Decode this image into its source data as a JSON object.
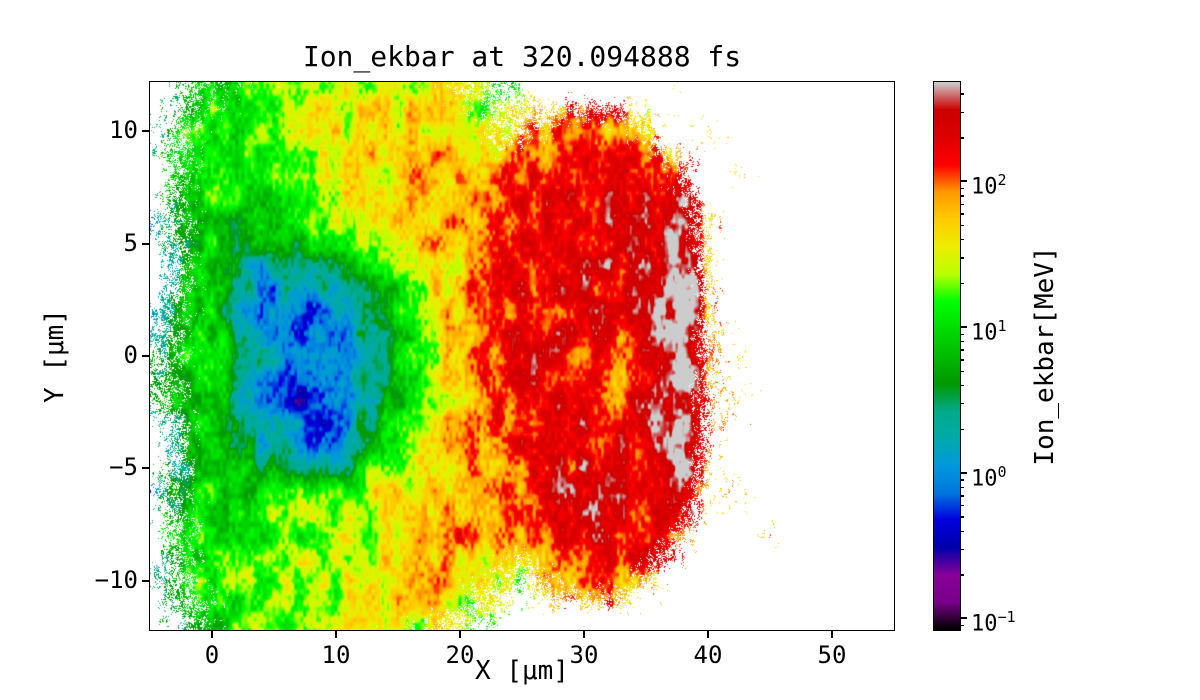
{
  "figure": {
    "title": "Ion_ekbar at 320.094888 fs",
    "xlabel": "X [μm]",
    "ylabel": "Y [μm]",
    "background": "#ffffff"
  },
  "axes": {
    "xlim": [
      -5,
      55
    ],
    "ylim": [
      -12.2,
      12.2
    ],
    "xticks": [
      0,
      10,
      20,
      30,
      40,
      50
    ],
    "yticks": [
      -10,
      -5,
      0,
      5,
      10
    ]
  },
  "colorbar": {
    "label": "Ion_ekbar[MeV]",
    "scale": "log",
    "tick_exponents": [
      2,
      1,
      0,
      -1
    ],
    "vmin_exp": -1.08,
    "vmax_exp": 2.68,
    "colormap": "nipy_spectral",
    "stops": [
      {
        "t": 0.0,
        "color": "#000000"
      },
      {
        "t": 0.05,
        "color": "#770088"
      },
      {
        "t": 0.1,
        "color": "#880099"
      },
      {
        "t": 0.15,
        "color": "#0000AA"
      },
      {
        "t": 0.2,
        "color": "#0000DD"
      },
      {
        "t": 0.25,
        "color": "#0077DD"
      },
      {
        "t": 0.3,
        "color": "#0099DD"
      },
      {
        "t": 0.35,
        "color": "#00AAAA"
      },
      {
        "t": 0.4,
        "color": "#00AA88"
      },
      {
        "t": 0.45,
        "color": "#009900"
      },
      {
        "t": 0.5,
        "color": "#00BB00"
      },
      {
        "t": 0.55,
        "color": "#00DD00"
      },
      {
        "t": 0.6,
        "color": "#00FF00"
      },
      {
        "t": 0.65,
        "color": "#BBFF00"
      },
      {
        "t": 0.7,
        "color": "#EEEE00"
      },
      {
        "t": 0.75,
        "color": "#FFCC00"
      },
      {
        "t": 0.8,
        "color": "#FF9900"
      },
      {
        "t": 0.85,
        "color": "#FF0000"
      },
      {
        "t": 0.9,
        "color": "#DD0000"
      },
      {
        "t": 0.95,
        "color": "#CC0000"
      },
      {
        "t": 1.0,
        "color": "#CCCCCC"
      }
    ]
  },
  "chart_data": {
    "type": "heatmap",
    "title": "Ion_ekbar at 320.094888 fs",
    "xlabel": "X [μm]",
    "ylabel": "Y [μm]",
    "value_label": "Ion_ekbar[MeV]",
    "value_scale": "log",
    "value_units": "MeV",
    "x_range": [
      -5,
      55
    ],
    "y_range": [
      -12.2,
      12.2
    ],
    "grid_x": [
      -5,
      -2.5,
      0,
      2.5,
      5,
      7.5,
      10,
      12.5,
      15,
      17.5,
      20,
      22.5,
      25,
      27.5,
      30,
      32.5,
      35,
      37.5,
      40,
      42.5,
      45,
      47.5,
      50,
      52.5,
      55
    ],
    "grid_y": [
      12,
      10,
      8,
      6,
      4,
      2,
      0,
      -2,
      -4,
      -6,
      -8,
      -10,
      -12
    ],
    "values_mev": [
      [
        null,
        5,
        12,
        15,
        18,
        22,
        28,
        30,
        32,
        35,
        25,
        12,
        15,
        null,
        null,
        null,
        null,
        40,
        null,
        null,
        null,
        null,
        null,
        null,
        null
      ],
      [
        2,
        8,
        12,
        15,
        18,
        25,
        32,
        38,
        45,
        50,
        40,
        25,
        60,
        90,
        120,
        90,
        40,
        null,
        40,
        null,
        null,
        null,
        null,
        null,
        null
      ],
      [
        null,
        10,
        15,
        12,
        15,
        20,
        30,
        40,
        50,
        60,
        55,
        70,
        110,
        170,
        200,
        200,
        170,
        80,
        null,
        50,
        null,
        null,
        null,
        null,
        null
      ],
      [
        1,
        5,
        10,
        8,
        10,
        15,
        20,
        30,
        40,
        55,
        65,
        85,
        150,
        190,
        200,
        200,
        210,
        420,
        60,
        null,
        null,
        null,
        null,
        null,
        null
      ],
      [
        null,
        3,
        8,
        2,
        1.5,
        3,
        5,
        10,
        25,
        40,
        60,
        95,
        170,
        200,
        190,
        200,
        210,
        600,
        80,
        null,
        null,
        null,
        null,
        null,
        null
      ],
      [
        2,
        6,
        10,
        1.5,
        0.8,
        0.5,
        1.2,
        2.5,
        10,
        35,
        60,
        100,
        180,
        200,
        180,
        200,
        210,
        600,
        90,
        null,
        null,
        null,
        null,
        null,
        null
      ],
      [
        3,
        8,
        12,
        5,
        1.0,
        0.6,
        0.8,
        1.5,
        6,
        30,
        55,
        90,
        180,
        200,
        120,
        90,
        210,
        600,
        100,
        60,
        null,
        null,
        null,
        null,
        null
      ],
      [
        2,
        6,
        10,
        2,
        0.7,
        0.4,
        1.0,
        2.5,
        8,
        30,
        55,
        90,
        170,
        200,
        150,
        110,
        210,
        600,
        90,
        60,
        null,
        null,
        null,
        null,
        null
      ],
      [
        null,
        4,
        9,
        3,
        1.5,
        1.0,
        0.6,
        3,
        20,
        40,
        60,
        85,
        160,
        190,
        200,
        200,
        210,
        500,
        80,
        null,
        null,
        null,
        null,
        null,
        null
      ],
      [
        1,
        5,
        10,
        8,
        12,
        15,
        18,
        25,
        35,
        50,
        70,
        60,
        120,
        180,
        200,
        200,
        210,
        420,
        60,
        40,
        null,
        null,
        null,
        null,
        null
      ],
      [
        null,
        8,
        12,
        14,
        16,
        20,
        25,
        30,
        40,
        60,
        80,
        50,
        80,
        160,
        200,
        210,
        190,
        100,
        null,
        null,
        50,
        null,
        null,
        null,
        null
      ],
      [
        2,
        6,
        14,
        16,
        18,
        22,
        28,
        35,
        45,
        55,
        40,
        30,
        15,
        60,
        90,
        110,
        50,
        null,
        null,
        null,
        null,
        null,
        null,
        null,
        null
      ],
      [
        null,
        3,
        10,
        14,
        16,
        20,
        25,
        30,
        35,
        30,
        20,
        10,
        null,
        null,
        null,
        null,
        null,
        null,
        null,
        null,
        null,
        null,
        null,
        null,
        null
      ]
    ],
    "coverage": [
      [
        0,
        0.3,
        0.6,
        0.7,
        0.8,
        0.8,
        0.85,
        0.85,
        0.8,
        0.8,
        0.6,
        0.4,
        0.25,
        0,
        0,
        0,
        0,
        0.2,
        0,
        0,
        0,
        0,
        0,
        0,
        0
      ],
      [
        0.25,
        0.45,
        0.8,
        0.9,
        0.95,
        1,
        1,
        1,
        1,
        1,
        0.9,
        0.6,
        0.5,
        0.7,
        0.9,
        0.8,
        0.5,
        0,
        0.2,
        0,
        0,
        0,
        0,
        0,
        0
      ],
      [
        0,
        0.5,
        0.85,
        0.95,
        1,
        1,
        1,
        1,
        1,
        1,
        1,
        0.9,
        0.9,
        1,
        1,
        1,
        1,
        0.6,
        0,
        0.2,
        0,
        0,
        0,
        0,
        0
      ],
      [
        0.3,
        0.55,
        0.9,
        1,
        1,
        1,
        1,
        1,
        1,
        1,
        1,
        1,
        1,
        1,
        1,
        1,
        1,
        0.9,
        0.3,
        0,
        0,
        0,
        0,
        0,
        0
      ],
      [
        0,
        0.5,
        0.9,
        1,
        1,
        1,
        1,
        1,
        1,
        1,
        1,
        1,
        1,
        1,
        1,
        1,
        1,
        1,
        0.3,
        0,
        0,
        0,
        0,
        0,
        0
      ],
      [
        0.3,
        0.55,
        0.9,
        1,
        1,
        1,
        1,
        1,
        1,
        1,
        1,
        1,
        1,
        1,
        1,
        1,
        1,
        1,
        0.35,
        0,
        0,
        0,
        0,
        0,
        0
      ],
      [
        0.35,
        0.6,
        0.95,
        1,
        1,
        1,
        1,
        1,
        1,
        1,
        1,
        1,
        1,
        1,
        1,
        1,
        1,
        1,
        0.4,
        0.2,
        0,
        0,
        0,
        0,
        0
      ],
      [
        0.3,
        0.55,
        0.9,
        1,
        1,
        1,
        1,
        1,
        1,
        1,
        1,
        1,
        1,
        1,
        1,
        1,
        1,
        1,
        0.35,
        0.2,
        0,
        0,
        0,
        0,
        0
      ],
      [
        0,
        0.5,
        0.9,
        1,
        1,
        1,
        1,
        1,
        1,
        1,
        1,
        1,
        1,
        1,
        1,
        1,
        1,
        1,
        0.3,
        0,
        0,
        0,
        0,
        0,
        0
      ],
      [
        0.3,
        0.55,
        0.9,
        1,
        1,
        1,
        1,
        1,
        1,
        1,
        1,
        1,
        1,
        1,
        1,
        1,
        1,
        0.9,
        0.3,
        0.2,
        0,
        0,
        0,
        0,
        0
      ],
      [
        0,
        0.5,
        0.85,
        0.95,
        1,
        1,
        1,
        1,
        1,
        1,
        1,
        0.9,
        0.8,
        1,
        1,
        1,
        1,
        0.5,
        0,
        0,
        0.2,
        0,
        0,
        0,
        0
      ],
      [
        0.25,
        0.45,
        0.8,
        0.9,
        0.95,
        1,
        1,
        1,
        1,
        0.95,
        0.8,
        0.6,
        0.4,
        0.6,
        0.8,
        0.8,
        0.4,
        0,
        0,
        0,
        0,
        0,
        0,
        0,
        0
      ],
      [
        0,
        0.3,
        0.6,
        0.75,
        0.8,
        0.8,
        0.8,
        0.8,
        0.75,
        0.6,
        0.45,
        0.3,
        0,
        0,
        0,
        0,
        0,
        0,
        0,
        0,
        0,
        0,
        0,
        0,
        0
      ]
    ]
  }
}
